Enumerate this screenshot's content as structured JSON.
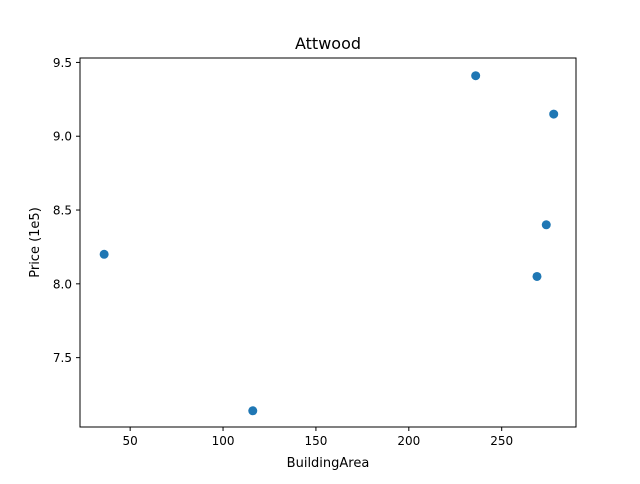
{
  "chart_data": {
    "type": "scatter",
    "title": "Attwood",
    "xlabel": "BuildingArea",
    "ylabel": "Price (1e5)",
    "xlim": [
      23,
      290
    ],
    "ylim": [
      7.03,
      9.53
    ],
    "xticks": [
      50,
      100,
      150,
      200,
      250
    ],
    "xtick_labels": [
      "50",
      "100",
      "150",
      "200",
      "250"
    ],
    "yticks": [
      7.5,
      8.0,
      8.5,
      9.0,
      9.5
    ],
    "ytick_labels": [
      "7.5",
      "8.0",
      "8.5",
      "9.0",
      "9.5"
    ],
    "grid": false,
    "legend": false,
    "series": [
      {
        "color": "#1f77b4",
        "points": [
          {
            "x": 36,
            "y": 8.2
          },
          {
            "x": 116,
            "y": 7.14
          },
          {
            "x": 236,
            "y": 9.41
          },
          {
            "x": 269,
            "y": 8.05
          },
          {
            "x": 274,
            "y": 8.4
          },
          {
            "x": 278,
            "y": 9.15
          }
        ]
      }
    ]
  }
}
